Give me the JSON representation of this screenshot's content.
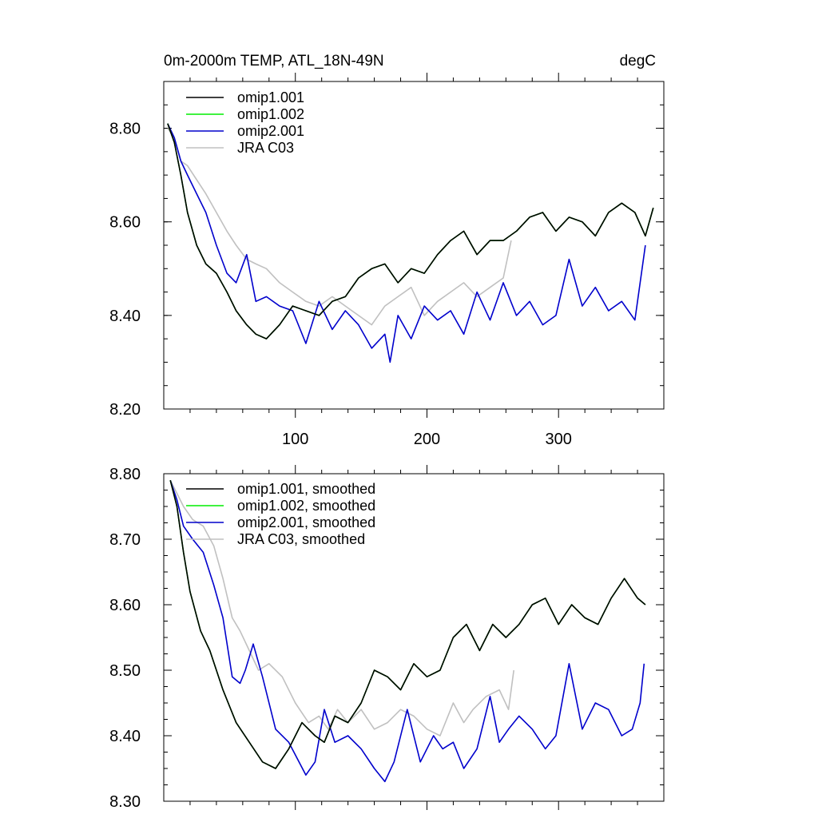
{
  "chart_data": [
    {
      "type": "line",
      "title": "0m-2000m TEMP, ATL_18N-49N",
      "units": "degC",
      "xlim": [
        0,
        380
      ],
      "ylim": [
        8.2,
        8.9
      ],
      "xticks": [
        100,
        200,
        300
      ],
      "xtick_labels": [
        "100",
        "200",
        "300"
      ],
      "yticks": [
        8.2,
        8.4,
        8.6,
        8.8
      ],
      "ytick_labels": [
        "8.20",
        "8.40",
        "8.60",
        "8.80"
      ],
      "legend": "top-left",
      "series": [
        {
          "name": "omip1.001",
          "color": "#000000",
          "x": [
            3,
            8,
            13,
            18,
            25,
            32,
            40,
            48,
            55,
            63,
            70,
            78,
            88,
            98,
            108,
            118,
            128,
            138,
            148,
            158,
            168,
            178,
            188,
            198,
            208,
            218,
            228,
            238,
            248,
            258,
            268,
            278,
            288,
            298,
            308,
            318,
            328,
            338,
            348,
            358,
            366,
            372
          ],
          "y": [
            8.81,
            8.77,
            8.7,
            8.62,
            8.55,
            8.51,
            8.49,
            8.45,
            8.41,
            8.38,
            8.36,
            8.35,
            8.38,
            8.42,
            8.41,
            8.4,
            8.43,
            8.44,
            8.48,
            8.5,
            8.51,
            8.47,
            8.5,
            8.49,
            8.53,
            8.56,
            8.58,
            8.53,
            8.56,
            8.56,
            8.58,
            8.61,
            8.62,
            8.58,
            8.61,
            8.6,
            8.57,
            8.62,
            8.64,
            8.62,
            8.57,
            8.63
          ]
        },
        {
          "name": "omip1.002",
          "color": "#00ee00",
          "x": [
            3,
            8,
            13,
            18,
            25,
            32,
            40,
            48,
            55,
            63,
            70,
            78,
            88,
            98,
            108,
            118,
            128,
            138,
            148,
            158,
            168,
            178,
            188,
            198,
            208,
            218,
            228,
            238,
            248,
            258,
            268,
            278,
            288,
            298,
            308,
            318,
            328,
            338,
            348,
            358,
            366,
            372
          ],
          "y": [
            8.81,
            8.77,
            8.7,
            8.62,
            8.55,
            8.51,
            8.49,
            8.45,
            8.41,
            8.38,
            8.36,
            8.35,
            8.38,
            8.42,
            8.41,
            8.4,
            8.43,
            8.44,
            8.48,
            8.5,
            8.51,
            8.47,
            8.5,
            8.49,
            8.53,
            8.56,
            8.58,
            8.53,
            8.56,
            8.56,
            8.58,
            8.61,
            8.62,
            8.58,
            8.61,
            8.6,
            8.57,
            8.62,
            8.64,
            8.62,
            8.57,
            8.63
          ]
        },
        {
          "name": "omip2.001",
          "color": "#0000cc",
          "x": [
            3,
            8,
            13,
            18,
            25,
            32,
            40,
            48,
            55,
            63,
            70,
            78,
            88,
            98,
            108,
            118,
            128,
            138,
            148,
            158,
            168,
            172,
            178,
            188,
            198,
            208,
            218,
            228,
            238,
            248,
            258,
            268,
            278,
            288,
            298,
            308,
            318,
            328,
            338,
            348,
            358,
            366
          ],
          "y": [
            8.81,
            8.78,
            8.73,
            8.7,
            8.66,
            8.62,
            8.55,
            8.49,
            8.47,
            8.53,
            8.43,
            8.44,
            8.42,
            8.41,
            8.34,
            8.43,
            8.37,
            8.41,
            8.38,
            8.33,
            8.36,
            8.3,
            8.4,
            8.35,
            8.42,
            8.39,
            8.41,
            8.36,
            8.45,
            8.39,
            8.47,
            8.4,
            8.43,
            8.38,
            8.4,
            8.52,
            8.42,
            8.46,
            8.41,
            8.43,
            8.39,
            8.55
          ]
        },
        {
          "name": "JRA C03",
          "color": "#c0c0c0",
          "x": [
            3,
            8,
            13,
            18,
            25,
            32,
            40,
            48,
            55,
            63,
            70,
            78,
            88,
            98,
            108,
            118,
            128,
            138,
            148,
            158,
            168,
            178,
            188,
            198,
            208,
            218,
            228,
            238,
            248,
            258,
            264
          ],
          "y": [
            8.8,
            8.78,
            8.73,
            8.72,
            8.69,
            8.66,
            8.62,
            8.58,
            8.55,
            8.52,
            8.51,
            8.5,
            8.47,
            8.45,
            8.43,
            8.42,
            8.44,
            8.42,
            8.4,
            8.38,
            8.42,
            8.44,
            8.46,
            8.4,
            8.43,
            8.45,
            8.47,
            8.44,
            8.46,
            8.48,
            8.56
          ]
        }
      ]
    },
    {
      "type": "line",
      "title": "",
      "xlim": [
        0,
        380
      ],
      "ylim": [
        8.3,
        8.8
      ],
      "xticks": [
        100,
        200,
        300
      ],
      "xtick_labels": [],
      "yticks": [
        8.3,
        8.4,
        8.5,
        8.6,
        8.7,
        8.8
      ],
      "ytick_labels": [
        "8.30",
        "8.40",
        "8.50",
        "8.60",
        "8.70",
        "8.80"
      ],
      "legend": "top-left",
      "series": [
        {
          "name": "omip1.001, smoothed",
          "color": "#000000",
          "x": [
            5,
            10,
            15,
            20,
            28,
            35,
            45,
            55,
            65,
            75,
            85,
            95,
            105,
            115,
            122,
            130,
            140,
            150,
            160,
            170,
            180,
            190,
            200,
            210,
            220,
            230,
            240,
            250,
            260,
            270,
            280,
            290,
            300,
            310,
            320,
            330,
            340,
            350,
            360,
            366
          ],
          "y": [
            8.79,
            8.75,
            8.68,
            8.62,
            8.56,
            8.53,
            8.47,
            8.42,
            8.39,
            8.36,
            8.35,
            8.38,
            8.42,
            8.4,
            8.39,
            8.43,
            8.42,
            8.45,
            8.5,
            8.49,
            8.47,
            8.51,
            8.49,
            8.5,
            8.55,
            8.57,
            8.53,
            8.57,
            8.55,
            8.57,
            8.6,
            8.61,
            8.57,
            8.6,
            8.58,
            8.57,
            8.61,
            8.64,
            8.61,
            8.6
          ]
        },
        {
          "name": "omip1.002, smoothed",
          "color": "#00ee00",
          "x": [
            5,
            10,
            15,
            20,
            28,
            35,
            45,
            55,
            65,
            75,
            85,
            95,
            105,
            115,
            122,
            130,
            140,
            150,
            160,
            170,
            180,
            190,
            200,
            210,
            220,
            230,
            240,
            250,
            260,
            270,
            280,
            290,
            300,
            310,
            320,
            330,
            340,
            350,
            360,
            366
          ],
          "y": [
            8.79,
            8.75,
            8.68,
            8.62,
            8.56,
            8.53,
            8.47,
            8.42,
            8.39,
            8.36,
            8.35,
            8.38,
            8.42,
            8.4,
            8.39,
            8.43,
            8.42,
            8.45,
            8.5,
            8.49,
            8.47,
            8.51,
            8.49,
            8.5,
            8.55,
            8.57,
            8.53,
            8.57,
            8.55,
            8.57,
            8.6,
            8.61,
            8.57,
            8.6,
            8.58,
            8.57,
            8.61,
            8.64,
            8.61,
            8.6
          ]
        },
        {
          "name": "omip2.001, smoothed",
          "color": "#0000cc",
          "x": [
            5,
            10,
            15,
            22,
            30,
            38,
            45,
            52,
            58,
            62,
            68,
            75,
            85,
            95,
            108,
            115,
            122,
            130,
            140,
            150,
            160,
            168,
            175,
            185,
            195,
            205,
            212,
            220,
            228,
            238,
            248,
            255,
            262,
            270,
            280,
            290,
            298,
            308,
            318,
            328,
            338,
            348,
            356,
            362,
            365
          ],
          "y": [
            8.79,
            8.76,
            8.72,
            8.7,
            8.68,
            8.63,
            8.58,
            8.49,
            8.48,
            8.5,
            8.54,
            8.49,
            8.41,
            8.39,
            8.34,
            8.36,
            8.44,
            8.39,
            8.4,
            8.38,
            8.35,
            8.33,
            8.36,
            8.44,
            8.36,
            8.4,
            8.38,
            8.39,
            8.35,
            8.38,
            8.46,
            8.39,
            8.41,
            8.43,
            8.41,
            8.38,
            8.4,
            8.51,
            8.41,
            8.45,
            8.44,
            8.4,
            8.41,
            8.45,
            8.51
          ]
        },
        {
          "name": "JRA C03, smoothed",
          "color": "#c0c0c0",
          "x": [
            5,
            10,
            15,
            22,
            30,
            38,
            45,
            52,
            58,
            65,
            72,
            80,
            90,
            100,
            110,
            118,
            125,
            132,
            140,
            150,
            160,
            170,
            180,
            190,
            200,
            210,
            220,
            228,
            235,
            245,
            255,
            262,
            266
          ],
          "y": [
            8.79,
            8.77,
            8.75,
            8.73,
            8.72,
            8.69,
            8.64,
            8.58,
            8.56,
            8.53,
            8.5,
            8.51,
            8.49,
            8.45,
            8.42,
            8.43,
            8.41,
            8.44,
            8.42,
            8.44,
            8.41,
            8.42,
            8.44,
            8.43,
            8.41,
            8.4,
            8.45,
            8.42,
            8.44,
            8.46,
            8.47,
            8.44,
            8.5
          ]
        }
      ]
    }
  ]
}
